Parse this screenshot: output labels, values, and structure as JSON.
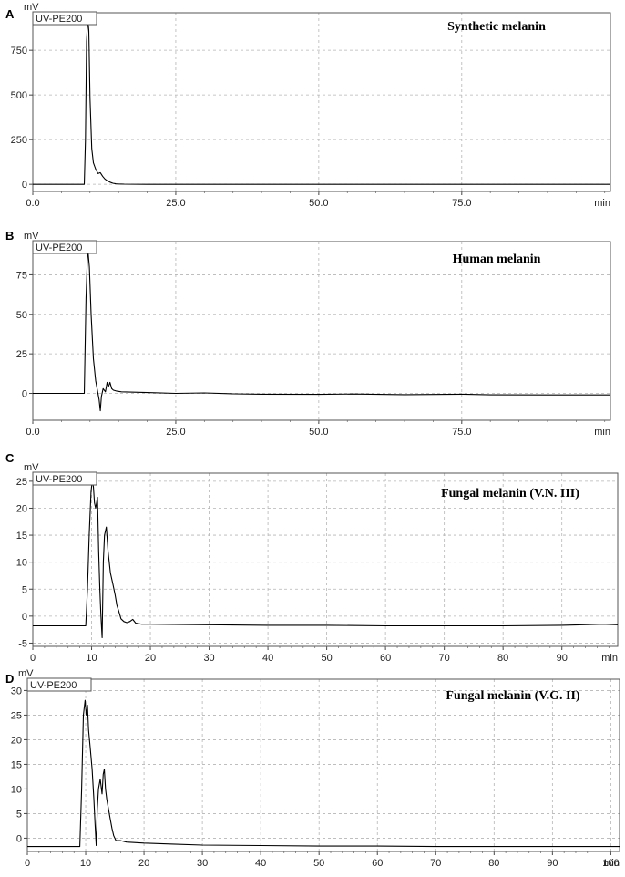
{
  "chart_data": [
    {
      "type": "line",
      "panel_label": "A",
      "title": "Synthetic melanin",
      "detector_label": "UV-PE200",
      "ylabel": "mV",
      "xlabel": "min",
      "xlim": [
        0,
        101
      ],
      "ylim": [
        -40,
        960
      ],
      "xticks": [
        0,
        25,
        50,
        75
      ],
      "xtick_labels": [
        "0.0",
        "25.0",
        "50.0",
        "75.0"
      ],
      "yticks": [
        0,
        250,
        500,
        750
      ],
      "ytick_labels": [
        "0",
        "250",
        "500",
        "750"
      ],
      "grid": true,
      "series": [
        {
          "x": [
            0,
            9.0,
            9.2,
            9.4,
            9.6,
            9.8,
            10.0,
            10.3,
            10.6,
            11.0,
            11.4,
            11.8,
            12.2,
            12.6,
            13.0,
            13.5,
            14.0,
            14.5,
            15.0,
            16.0,
            20.0,
            101
          ],
          "y": [
            0,
            0,
            250,
            800,
            930,
            860,
            480,
            200,
            120,
            85,
            60,
            65,
            45,
            30,
            20,
            12,
            6,
            3,
            2,
            1,
            0,
            0
          ]
        }
      ]
    },
    {
      "type": "line",
      "panel_label": "B",
      "title": "Human melanin",
      "detector_label": "UV-PE200",
      "ylabel": "mV",
      "xlabel": "min",
      "xlim": [
        0,
        101
      ],
      "ylim": [
        -17,
        96
      ],
      "xticks": [
        0,
        25,
        50,
        75
      ],
      "xtick_labels": [
        "0.0",
        "25.0",
        "50.0",
        "75.0"
      ],
      "yticks": [
        0,
        25,
        50,
        75
      ],
      "ytick_labels": [
        "0",
        "25",
        "50",
        "75"
      ],
      "grid": true,
      "series": [
        {
          "x": [
            0,
            9.0,
            9.3,
            9.6,
            9.9,
            10.2,
            10.6,
            11.0,
            11.3,
            11.6,
            11.8,
            12.0,
            12.3,
            12.7,
            13.0,
            13.2,
            13.5,
            13.8,
            14.1,
            14.6,
            15.5,
            17.0,
            20.0,
            25.0,
            30.0,
            35.0,
            40.0,
            50.0,
            56.0,
            65.0,
            75.0,
            80.0,
            90.0,
            101
          ],
          "y": [
            0,
            0,
            60,
            92,
            80,
            50,
            22,
            8,
            2,
            -4,
            -11,
            -2,
            3,
            1,
            7,
            4,
            7,
            3,
            2,
            1.5,
            1,
            0.8,
            0.5,
            0,
            0.3,
            -0.3,
            -0.5,
            -0.6,
            -0.4,
            -0.8,
            -0.5,
            -0.9,
            -1.0,
            -1.0
          ]
        }
      ]
    },
    {
      "type": "line",
      "panel_label": "C",
      "title": "Fungal melanin (V.N. III)",
      "detector_label": "UV-PE200",
      "ylabel": "mV",
      "xlabel": "min",
      "xlim": [
        0,
        99.5
      ],
      "ylim": [
        -5.6,
        26.5
      ],
      "xticks": [
        0,
        10,
        20,
        30,
        40,
        50,
        60,
        70,
        80,
        90
      ],
      "xtick_labels": [
        "0",
        "10",
        "20",
        "30",
        "40",
        "50",
        "60",
        "70",
        "80",
        "90"
      ],
      "yticks": [
        -5,
        0,
        5,
        10,
        15,
        20,
        25
      ],
      "ytick_labels": [
        "-5",
        "0",
        "5",
        "10",
        "15",
        "20",
        "25"
      ],
      "grid": true,
      "series": [
        {
          "x": [
            0,
            9.0,
            9.3,
            9.6,
            9.9,
            10.1,
            10.3,
            10.5,
            10.7,
            11.0,
            11.2,
            11.4,
            11.6,
            11.8,
            12.0,
            12.2,
            12.5,
            12.8,
            13.2,
            13.6,
            14.0,
            14.3,
            14.6,
            15.0,
            15.5,
            16.0,
            16.5,
            17.0,
            17.5,
            18.5,
            20.0,
            30.0,
            40.0,
            50.0,
            60.0,
            70.0,
            80.0,
            90.0,
            97.0,
            99.5
          ],
          "y": [
            -1.8,
            -1.8,
            5,
            15,
            23,
            25,
            24,
            21,
            20,
            22,
            12,
            5,
            0,
            -4,
            10,
            15,
            16.5,
            12,
            8,
            6,
            4,
            2,
            1,
            -0.5,
            -1,
            -1.2,
            -1,
            -0.6,
            -1.3,
            -1.5,
            -1.5,
            -1.6,
            -1.7,
            -1.7,
            -1.8,
            -1.8,
            -1.8,
            -1.7,
            -1.5,
            -1.6
          ]
        }
      ]
    },
    {
      "type": "line",
      "panel_label": "D",
      "title": "Fungal melanin (V.G. II)",
      "detector_label": "UV-PE200",
      "ylabel": "mV",
      "xlabel": "min",
      "xlim": [
        0,
        101.5
      ],
      "ylim": [
        -2.7,
        32.3
      ],
      "xticks": [
        0,
        10,
        20,
        30,
        40,
        50,
        60,
        70,
        80,
        90,
        100
      ],
      "xtick_labels": [
        "0",
        "10",
        "20",
        "30",
        "40",
        "50",
        "60",
        "70",
        "80",
        "90",
        "100"
      ],
      "yticks": [
        0,
        5,
        10,
        15,
        20,
        25,
        30
      ],
      "ytick_labels": [
        "0",
        "5",
        "10",
        "15",
        "20",
        "25",
        "30"
      ],
      "grid": true,
      "series": [
        {
          "x": [
            0,
            9.0,
            9.3,
            9.6,
            9.9,
            10.1,
            10.3,
            10.5,
            10.8,
            11.1,
            11.4,
            11.6,
            11.8,
            12.0,
            12.2,
            12.5,
            12.8,
            13.0,
            13.2,
            13.4,
            13.6,
            13.9,
            14.2,
            14.5,
            14.8,
            15.2,
            16.0,
            17.0,
            20.0,
            25.0,
            30.0,
            40.0,
            50.0,
            60.0,
            70.0,
            80.0,
            90.0,
            101.5
          ],
          "y": [
            -1.7,
            -1.7,
            10,
            25,
            28,
            25,
            27,
            22,
            18,
            14,
            8,
            3,
            -1.5,
            6,
            10,
            12,
            9,
            13,
            14,
            10,
            8,
            6,
            4,
            2,
            0.5,
            -0.5,
            -0.5,
            -0.8,
            -1.0,
            -1.2,
            -1.4,
            -1.5,
            -1.6,
            -1.6,
            -1.7,
            -1.7,
            -1.7,
            -1.7
          ]
        }
      ]
    }
  ]
}
